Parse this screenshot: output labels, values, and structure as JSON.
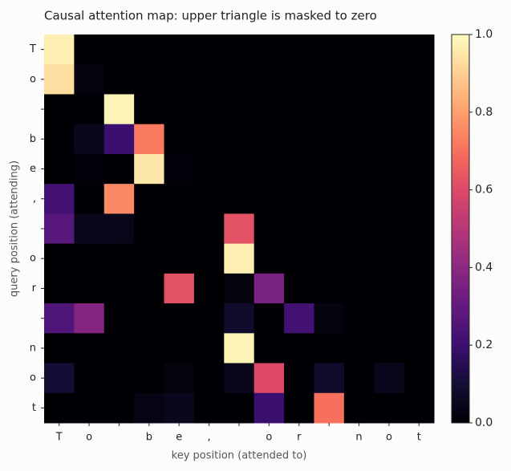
{
  "chart_data": {
    "type": "heatmap",
    "title": "Causal attention map: upper triangle is masked to zero",
    "x_label": "key position (attended to)",
    "y_label": "query position (attending)",
    "colormap": "magma",
    "x_categories": [
      "T",
      "o",
      null,
      "b",
      "e",
      ",",
      null,
      "o",
      "r",
      null,
      "n",
      "o",
      "t"
    ],
    "y_categories": [
      "T",
      "o",
      null,
      "b",
      "e",
      ",",
      null,
      "o",
      "r",
      null,
      "n",
      "o",
      "t"
    ],
    "values": [
      [
        0.97,
        0,
        0,
        0,
        0,
        0,
        0,
        0,
        0,
        0,
        0,
        0,
        0
      ],
      [
        0.93,
        0.02,
        0,
        0,
        0,
        0,
        0,
        0,
        0,
        0,
        0,
        0,
        0
      ],
      [
        0,
        0,
        0.98,
        0,
        0,
        0,
        0,
        0,
        0,
        0,
        0,
        0,
        0
      ],
      [
        0,
        0.05,
        0.2,
        0.72,
        0,
        0,
        0,
        0,
        0,
        0,
        0,
        0,
        0
      ],
      [
        0,
        0.01,
        0,
        0.95,
        0.01,
        0,
        0,
        0,
        0,
        0,
        0,
        0,
        0
      ],
      [
        0.22,
        0,
        0.75,
        0,
        0,
        0,
        0,
        0,
        0,
        0,
        0,
        0,
        0
      ],
      [
        0.27,
        0.05,
        0.04,
        0,
        0,
        0,
        0.62,
        0,
        0,
        0,
        0,
        0,
        0
      ],
      [
        0,
        0,
        0,
        0,
        0,
        0,
        0.97,
        0,
        0,
        0,
        0,
        0,
        0
      ],
      [
        0,
        0,
        0,
        0,
        0.62,
        0,
        0.02,
        0.35,
        0,
        0,
        0,
        0,
        0
      ],
      [
        0.25,
        0.38,
        0,
        0,
        0,
        0,
        0.08,
        0,
        0.22,
        0.02,
        0,
        0,
        0
      ],
      [
        0,
        0,
        0,
        0,
        0,
        0,
        0.98,
        0,
        0,
        0,
        0,
        0,
        0
      ],
      [
        0.1,
        0,
        0,
        0,
        0.02,
        0,
        0.05,
        0.6,
        0,
        0.08,
        0,
        0.05,
        0
      ],
      [
        0,
        0,
        0,
        0.03,
        0.05,
        0,
        0,
        0.2,
        0,
        0.7,
        0,
        0,
        0
      ]
    ],
    "clim": [
      0,
      1
    ],
    "cticks": [
      {
        "value": 0,
        "label": "0.0"
      },
      0.2,
      0.4,
      0.6,
      0.8,
      {
        "value": 1,
        "label": "1.0"
      }
    ]
  }
}
